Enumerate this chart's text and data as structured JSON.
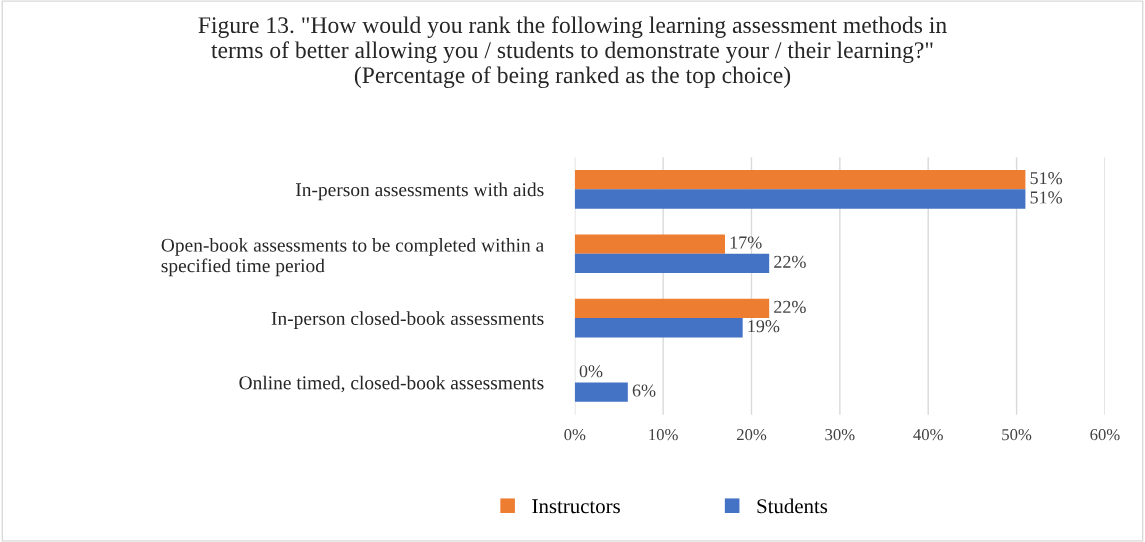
{
  "chart_data": {
    "type": "bar",
    "orientation": "horizontal",
    "title": "Figure 13. \"How would you rank the following learning assessment methods in\nterms of better allowing you / students to demonstrate your / their learning?\"\n(Percentage of being ranked as the top choice)",
    "categories": [
      "In-person assessments with aids",
      "Open-book assessments to be completed within a\nspecified time period",
      "In-person closed-book assessments",
      "Online timed, closed-book assessments"
    ],
    "series": [
      {
        "name": "Instructors",
        "color": "#ed7d31",
        "values": [
          51,
          17,
          22,
          0
        ],
        "value_labels": [
          "51%",
          "17%",
          "22%",
          "0%"
        ]
      },
      {
        "name": "Students",
        "color": "#4472c4",
        "values": [
          51,
          22,
          19,
          6
        ],
        "value_labels": [
          "51%",
          "22%",
          "19%",
          "6%"
        ]
      }
    ],
    "xlim": [
      0,
      60
    ],
    "xticks": [
      {
        "value": 0,
        "label": "0%"
      },
      {
        "value": 10,
        "label": "10%"
      },
      {
        "value": 20,
        "label": "20%"
      },
      {
        "value": 30,
        "label": "30%"
      },
      {
        "value": 40,
        "label": "40%"
      },
      {
        "value": 50,
        "label": "50%"
      },
      {
        "value": 60,
        "label": "60%"
      }
    ],
    "grid": "x",
    "legend": "bottom"
  }
}
